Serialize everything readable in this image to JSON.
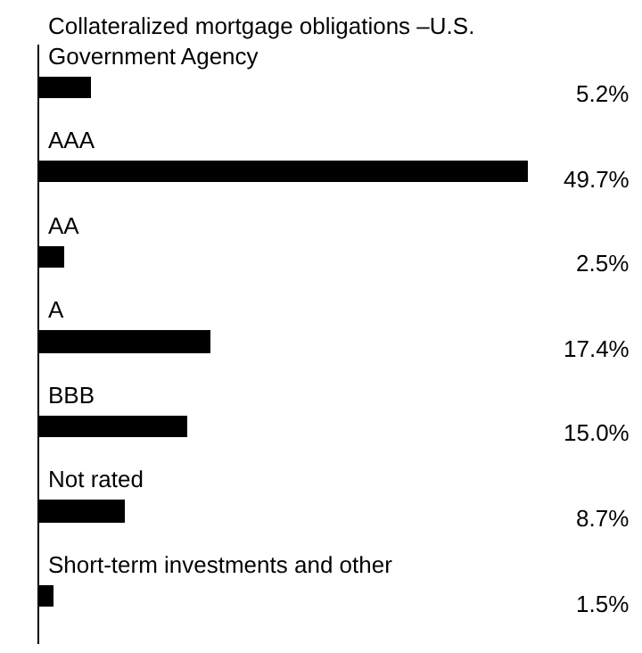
{
  "chart_data": {
    "type": "bar",
    "orientation": "horizontal",
    "categories": [
      "Collateralized mortgage obligations –U.S. Government Agency",
      "AAA",
      "AA",
      "A",
      "BBB",
      "Not rated",
      "Short-term investments and other"
    ],
    "values": [
      5.2,
      49.7,
      2.5,
      17.4,
      15.0,
      8.7,
      1.5
    ],
    "value_labels": [
      "5.2%",
      "49.7%",
      "2.5%",
      "17.4%",
      "15.0%",
      "8.7%",
      "1.5%"
    ],
    "color": "#000000",
    "tick_labels": "y",
    "grid": false,
    "legend": false
  }
}
